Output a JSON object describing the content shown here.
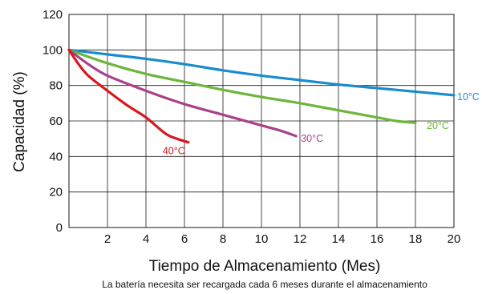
{
  "chart_data": {
    "type": "line",
    "xlabel": "Tiempo de Almacenamiento (Mes)",
    "ylabel": "Capacidad (%)",
    "note": "La batería necesita ser recargada cada 6 meses durante el almacenamiento",
    "xlim": [
      0,
      20
    ],
    "ylim": [
      0,
      120
    ],
    "x_ticks": [
      2,
      4,
      6,
      8,
      10,
      12,
      14,
      16,
      18,
      20
    ],
    "y_ticks": [
      0,
      20,
      40,
      60,
      80,
      100,
      120
    ],
    "grid": true,
    "series": [
      {
        "name": "10°C",
        "color": "#1a8ccc",
        "points": [
          [
            0,
            100
          ],
          [
            2,
            97.5
          ],
          [
            4,
            95
          ],
          [
            6,
            92
          ],
          [
            8,
            88.5
          ],
          [
            10,
            85.5
          ],
          [
            12,
            83
          ],
          [
            14,
            80.5
          ],
          [
            16,
            78.5
          ],
          [
            18,
            76.5
          ],
          [
            20,
            74.5
          ]
        ]
      },
      {
        "name": "20°C",
        "color": "#6cb63a",
        "points": [
          [
            0,
            100
          ],
          [
            2,
            92.5
          ],
          [
            4,
            86.5
          ],
          [
            6,
            82
          ],
          [
            8,
            77.5
          ],
          [
            10,
            73.5
          ],
          [
            12,
            70
          ],
          [
            14,
            66
          ],
          [
            16,
            62
          ],
          [
            17,
            60
          ],
          [
            18,
            59
          ]
        ]
      },
      {
        "name": "30°C",
        "color": "#a8428a",
        "points": [
          [
            0,
            100
          ],
          [
            1,
            92
          ],
          [
            2,
            85.5
          ],
          [
            4,
            77
          ],
          [
            6,
            69.5
          ],
          [
            8,
            63.5
          ],
          [
            10,
            57.5
          ],
          [
            11,
            54.5
          ],
          [
            11.8,
            51.5
          ]
        ]
      },
      {
        "name": "40°C",
        "color": "#d7191f",
        "points": [
          [
            0,
            100
          ],
          [
            0.5,
            92
          ],
          [
            1,
            85.5
          ],
          [
            2,
            77
          ],
          [
            3,
            69
          ],
          [
            4,
            62
          ],
          [
            5,
            53
          ],
          [
            5.6,
            50
          ],
          [
            6.2,
            48
          ]
        ]
      }
    ]
  }
}
